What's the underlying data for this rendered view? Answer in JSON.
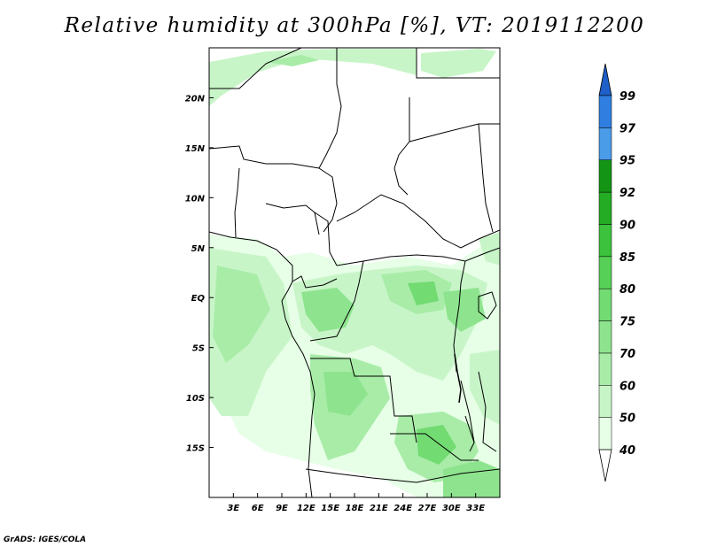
{
  "title": "Relative humidity at 300hPa [%], VT: 2019112200",
  "credit": "GrADS: IGES/COLA",
  "map": {
    "lon_range": [
      0,
      36
    ],
    "lat_range": [
      -20,
      25
    ],
    "lon_ticks": [
      {
        "value": 3,
        "label": "3E"
      },
      {
        "value": 6,
        "label": "6E"
      },
      {
        "value": 9,
        "label": "9E"
      },
      {
        "value": 12,
        "label": "12E"
      },
      {
        "value": 15,
        "label": "15E"
      },
      {
        "value": 18,
        "label": "18E"
      },
      {
        "value": 21,
        "label": "21E"
      },
      {
        "value": 24,
        "label": "24E"
      },
      {
        "value": 27,
        "label": "27E"
      },
      {
        "value": 30,
        "label": "30E"
      },
      {
        "value": 33,
        "label": "33E"
      }
    ],
    "lat_ticks": [
      {
        "value": 20,
        "label": "20N"
      },
      {
        "value": 15,
        "label": "15N"
      },
      {
        "value": 10,
        "label": "10N"
      },
      {
        "value": 5,
        "label": "5N"
      },
      {
        "value": 0,
        "label": "EQ"
      },
      {
        "value": -5,
        "label": "5S"
      },
      {
        "value": -10,
        "label": "10S"
      },
      {
        "value": -15,
        "label": "15S"
      }
    ]
  },
  "colorbar": {
    "levels": [
      "40",
      "50",
      "60",
      "70",
      "75",
      "80",
      "85",
      "90",
      "92",
      "95",
      "97",
      "99"
    ],
    "colors": [
      "#e6ffe6",
      "#c8f5c8",
      "#a8eca8",
      "#8ee48e",
      "#72db72",
      "#56d056",
      "#3cc23c",
      "#24ac24",
      "#149414",
      "#4a9be8",
      "#2f7ee0",
      "#1a5fd0"
    ],
    "under_color": "#ffffff",
    "over_color": "#1f5fc8"
  }
}
